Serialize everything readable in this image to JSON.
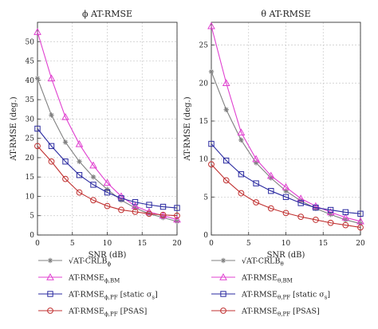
{
  "chart_data": [
    {
      "type": "line",
      "title": "ϕ AT-RMSE",
      "xlabel": "SNR (dB)",
      "ylabel": "AT-RMSE (deg.)",
      "xlim": [
        0,
        20
      ],
      "ylim": [
        0,
        55
      ],
      "xticks": [
        0,
        5,
        10,
        15,
        20
      ],
      "yticks": [
        0,
        5,
        10,
        15,
        20,
        25,
        30,
        35,
        40,
        45,
        50
      ],
      "grid": true,
      "x": [
        0,
        2,
        4,
        6,
        8,
        10,
        12,
        14,
        16,
        18,
        20
      ],
      "series": [
        {
          "name": "√AT-CRLB_ϕ",
          "marker": "star",
          "color": "#808080",
          "values": [
            40.5,
            31.0,
            24.0,
            19.0,
            15.0,
            11.8,
            9.0,
            7.0,
            5.5,
            4.5,
            3.5
          ]
        },
        {
          "name": "AT-RMSE_ϕ,BM",
          "marker": "triangle",
          "color": "#e040d0",
          "values": [
            52.5,
            40.5,
            30.5,
            23.5,
            18.0,
            13.5,
            10.0,
            7.5,
            6.0,
            5.0,
            4.0
          ]
        },
        {
          "name": "AT-RMSE_ϕ,PF [static σ_s]",
          "marker": "square",
          "color": "#2a2aa0",
          "values": [
            27.5,
            23.0,
            19.0,
            15.5,
            13.0,
            11.0,
            9.5,
            8.5,
            7.8,
            7.3,
            7.0
          ]
        },
        {
          "name": "AT-RMSE_ϕ,PF [PSAS]",
          "marker": "circle",
          "color": "#c03030",
          "values": [
            23.0,
            19.0,
            14.5,
            11.0,
            9.0,
            7.5,
            6.5,
            6.0,
            5.5,
            5.2,
            5.0
          ]
        }
      ]
    },
    {
      "type": "line",
      "title": "θ AT-RMSE",
      "xlabel": "SNR (dB)",
      "ylabel": "AT-RMSE (deg.)",
      "xlim": [
        0,
        20
      ],
      "ylim": [
        0,
        28
      ],
      "xticks": [
        0,
        5,
        10,
        15,
        20
      ],
      "yticks": [
        0,
        5,
        10,
        15,
        20,
        25
      ],
      "grid": true,
      "x": [
        0,
        2,
        4,
        6,
        8,
        10,
        12,
        14,
        16,
        18,
        20
      ],
      "series": [
        {
          "name": "√AT-CRLB_θ",
          "marker": "star",
          "color": "#808080",
          "values": [
            21.5,
            16.5,
            12.5,
            9.5,
            7.5,
            5.8,
            4.5,
            3.5,
            2.7,
            2.0,
            1.5
          ]
        },
        {
          "name": "AT-RMSE_θ,BM",
          "marker": "triangle",
          "color": "#e040d0",
          "values": [
            27.5,
            20.0,
            13.5,
            10.0,
            7.8,
            6.3,
            4.8,
            3.8,
            3.0,
            2.3,
            1.8
          ]
        },
        {
          "name": "AT-RMSE_θ,PF [static σ_s]",
          "marker": "square",
          "color": "#2a2aa0",
          "values": [
            12.0,
            9.8,
            8.0,
            6.8,
            5.8,
            5.0,
            4.2,
            3.6,
            3.3,
            3.0,
            2.8
          ]
        },
        {
          "name": "AT-RMSE_θ,PF [PSAS]",
          "marker": "circle",
          "color": "#c03030",
          "values": [
            9.3,
            7.2,
            5.5,
            4.3,
            3.5,
            2.9,
            2.4,
            2.0,
            1.6,
            1.3,
            1.0
          ]
        }
      ]
    }
  ],
  "legends": [
    {
      "entries": [
        {
          "base": "√AT-CRLB",
          "sub": "ϕ",
          "tail": ""
        },
        {
          "base": "AT-RMSE",
          "sub": "ϕ,BM",
          "tail": ""
        },
        {
          "base": "AT-RMSE",
          "sub": "ϕ,PF",
          "tail": " [static σ",
          "tail_sub": "s",
          "tail_end": "]"
        },
        {
          "base": "AT-RMSE",
          "sub": "ϕ,PF",
          "tail": " [PSAS]"
        }
      ]
    },
    {
      "entries": [
        {
          "base": "√AT-CRLB",
          "sub": "θ",
          "tail": ""
        },
        {
          "base": "AT-RMSE",
          "sub": "θ,BM",
          "tail": ""
        },
        {
          "base": "AT-RMSE",
          "sub": "θ,PF",
          "tail": " [static σ",
          "tail_sub": "s",
          "tail_end": "]"
        },
        {
          "base": "AT-RMSE",
          "sub": "θ,PF",
          "tail": " [PSAS]"
        }
      ]
    }
  ]
}
